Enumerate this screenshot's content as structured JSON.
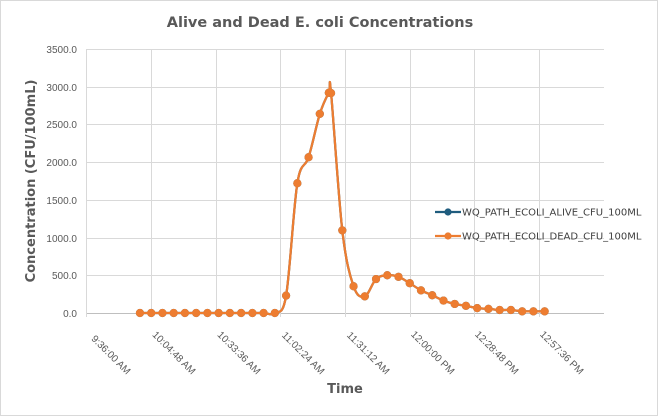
{
  "chart_data": {
    "type": "line",
    "title": "Alive and Dead E. coli Concentrations",
    "xlabel": "Time",
    "ylabel": "Concentration (CFU/100mL)",
    "ylim": [
      0,
      3500
    ],
    "yticks": [
      "0.0",
      "500.0",
      "1000.0",
      "1500.0",
      "2000.0",
      "2500.0",
      "3000.0",
      "3500.0"
    ],
    "ytick_values": [
      0,
      500,
      1000,
      1500,
      2000,
      2500,
      3000,
      3500
    ],
    "xlim_minutes": [
      576,
      806.4
    ],
    "xticks": [
      "9:36:00 AM",
      "10:04:48 AM",
      "10:33:36 AM",
      "11:02:24 AM",
      "11:31:12 AM",
      "12:00:00 PM",
      "12:28:48 PM",
      "12:57:36 PM"
    ],
    "xtick_minutes": [
      576,
      604.8,
      633.6,
      662.4,
      691.2,
      720,
      748.8,
      777.6
    ],
    "grid": true,
    "smoothed": true,
    "legend_position": "right",
    "x": [
      "10:00",
      "10:05",
      "10:10",
      "10:15",
      "10:20",
      "10:25",
      "10:30",
      "10:35",
      "10:40",
      "10:45",
      "10:50",
      "10:55",
      "11:00",
      "11:05",
      "11:10",
      "11:15",
      "11:20",
      "11:24",
      "11:25",
      "11:30",
      "11:35",
      "11:40",
      "11:45",
      "11:50",
      "11:55",
      "12:00",
      "12:05",
      "12:10",
      "12:15",
      "12:20",
      "12:25",
      "12:30",
      "12:35",
      "12:40",
      "12:45",
      "12:50",
      "12:55",
      "13:00"
    ],
    "series": [
      {
        "name": "WQ_PATH_ECOLI_ALIVE_CFU_100ML",
        "color": "#1f5c7e",
        "values": [
          0,
          0,
          0,
          0,
          0,
          0,
          0,
          0,
          0,
          0,
          0,
          0,
          0,
          230,
          1720,
          2065,
          2640,
          2920,
          2915,
          1095,
          355,
          220,
          450,
          500,
          480,
          395,
          300,
          235,
          165,
          120,
          95,
          65,
          55,
          40,
          40,
          22,
          22,
          22
        ]
      },
      {
        "name": "WQ_PATH_ECOLI_DEAD_CFU_100ML",
        "color": "#ed7d31",
        "values": [
          0,
          0,
          0,
          0,
          0,
          0,
          0,
          0,
          0,
          0,
          0,
          0,
          0,
          230,
          1720,
          2065,
          2640,
          2920,
          2915,
          1095,
          355,
          220,
          450,
          500,
          480,
          395,
          300,
          235,
          165,
          120,
          95,
          65,
          55,
          40,
          40,
          22,
          22,
          22
        ]
      }
    ]
  }
}
